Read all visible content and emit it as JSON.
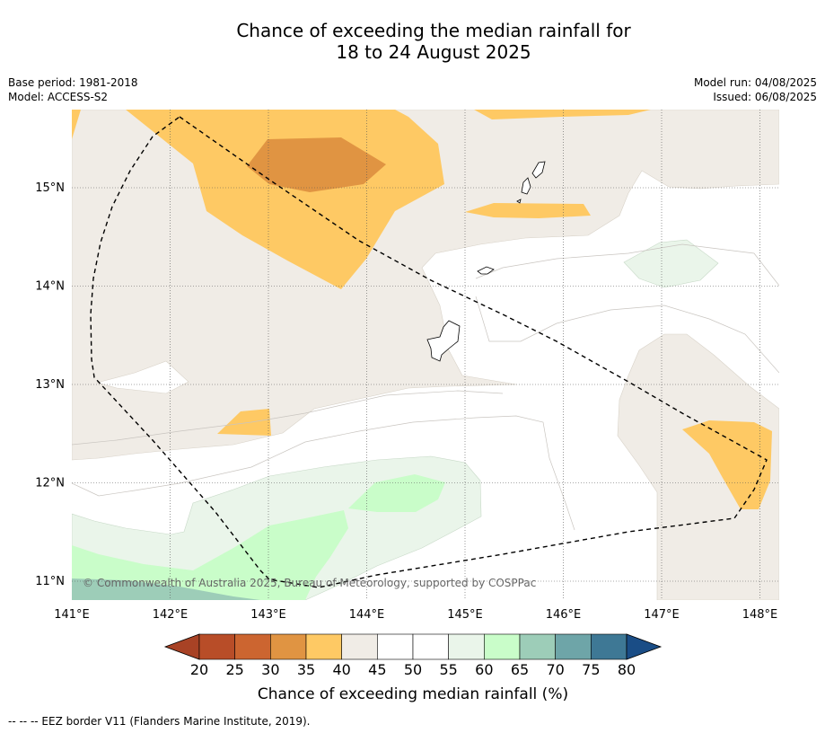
{
  "header": {
    "title_line1": "Chance of exceeding the median rainfall for",
    "title_line2": "18 to 24 August 2025",
    "base_period": "Base period: 1981-2018",
    "model": "Model: ACCESS-S2",
    "model_run": "Model run: 04/08/2025",
    "issued": "Issued: 06/08/2025"
  },
  "map": {
    "lon_ticks": [
      "141°E",
      "142°E",
      "143°E",
      "144°E",
      "145°E",
      "146°E",
      "147°E",
      "148°E"
    ],
    "lat_ticks": [
      "15°N",
      "14°N",
      "13°N",
      "12°N",
      "11°N"
    ],
    "copyright": "© Commonwealth of Australia 2025, Bureau of Meteorology, supported by COSPPac"
  },
  "colorbar": {
    "levels": [
      "20",
      "25",
      "30",
      "35",
      "40",
      "45",
      "50",
      "55",
      "60",
      "65",
      "70",
      "75",
      "80"
    ],
    "colors": [
      "#a84225",
      "#b84d28",
      "#cc6530",
      "#e09442",
      "#fec964",
      "#f0ece6",
      "#ffffff",
      "#ffffff",
      "#eaf5ea",
      "#c9fdc9",
      "#9dcdb8",
      "#6ea5a8",
      "#3e7895",
      "#1a4d86"
    ],
    "label": "Chance of exceeding median rainfall (%)"
  },
  "footer": {
    "legend": "--  --  -- EEZ border V11 (Flanders Marine Institute, 2019)."
  }
}
